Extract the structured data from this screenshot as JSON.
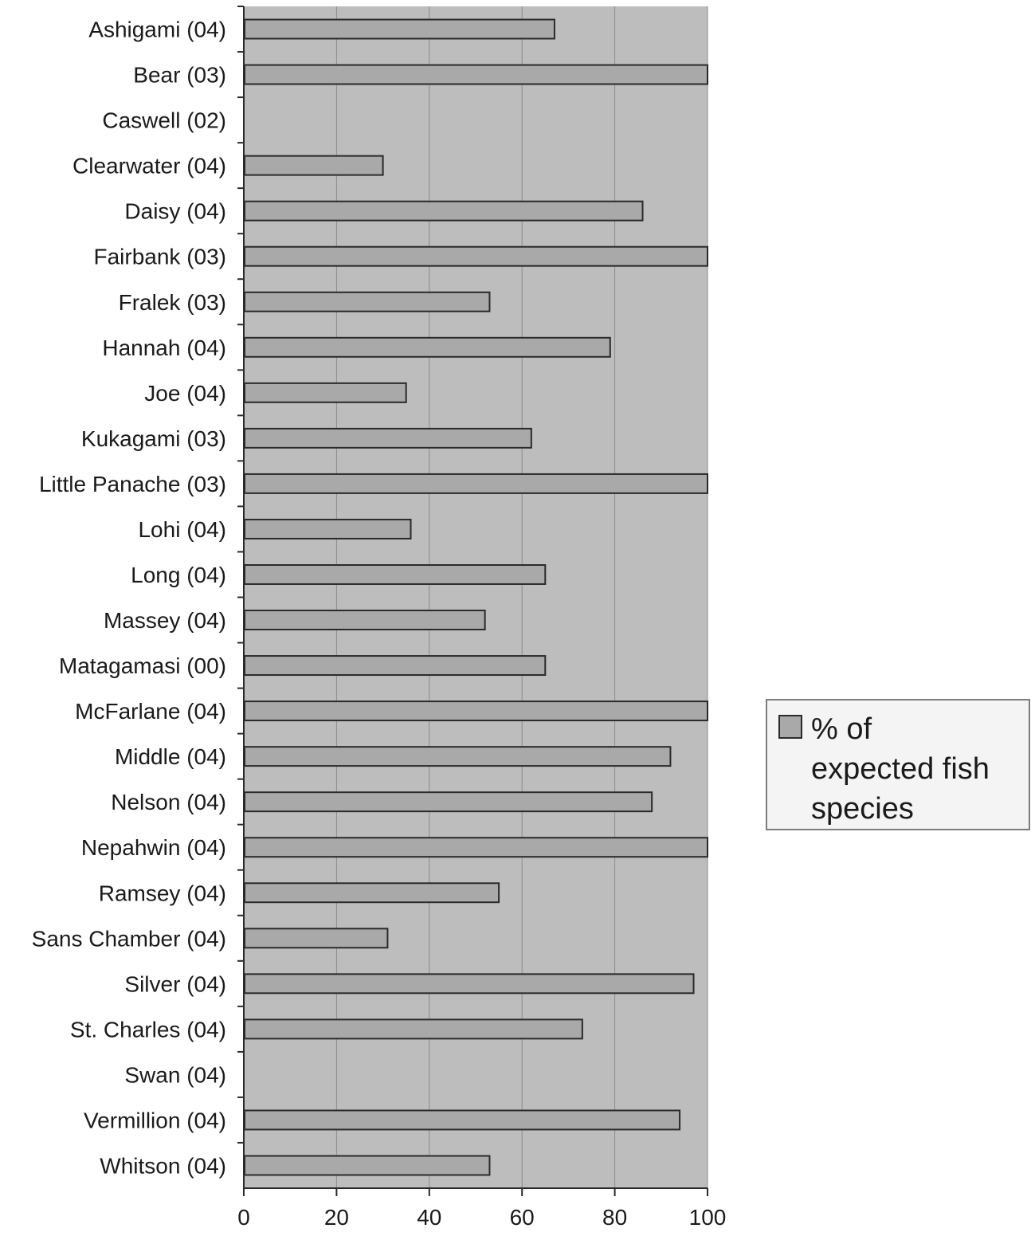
{
  "colors": {
    "plot_bg": "#bdbdbd",
    "bar_fill": "#a9a9a9",
    "bar_stroke": "#2a2a2a",
    "gridline": "#8c8c8c",
    "legend_bg": "#f4f4f4"
  },
  "chart_data": {
    "type": "bar",
    "orientation": "horizontal",
    "categories": [
      "Ashigami (04)",
      "Bear (03)",
      "Caswell (02)",
      "Clearwater (04)",
      "Daisy (04)",
      "Fairbank (03)",
      "Fralek (03)",
      "Hannah (04)",
      "Joe  (04)",
      "Kukagami (03)",
      "Little Panache (03)",
      "Lohi (04)",
      "Long (04)",
      "Massey (04)",
      "Matagamasi (00)",
      "McFarlane (04)",
      "Middle (04)",
      "Nelson (04)",
      "Nepahwin (04)",
      "Ramsey (04)",
      "Sans Chamber (04)",
      "Silver (04)",
      "St. Charles (04)",
      "Swan (04)",
      "Vermillion (04)",
      "Whitson (04)"
    ],
    "series": [
      {
        "name": "% of expected fish species",
        "values": [
          67,
          100,
          0,
          30,
          86,
          100,
          53,
          79,
          35,
          62,
          100,
          36,
          65,
          52,
          65,
          100,
          92,
          88,
          100,
          55,
          31,
          97,
          73,
          0,
          94,
          53
        ]
      }
    ],
    "xlim": [
      0,
      100
    ],
    "xticks": [
      "0",
      "20",
      "40",
      "60",
      "80",
      "100"
    ],
    "grid": true,
    "legend": {
      "position": "right",
      "lines": [
        "% of",
        "expected fish",
        "species"
      ]
    }
  }
}
